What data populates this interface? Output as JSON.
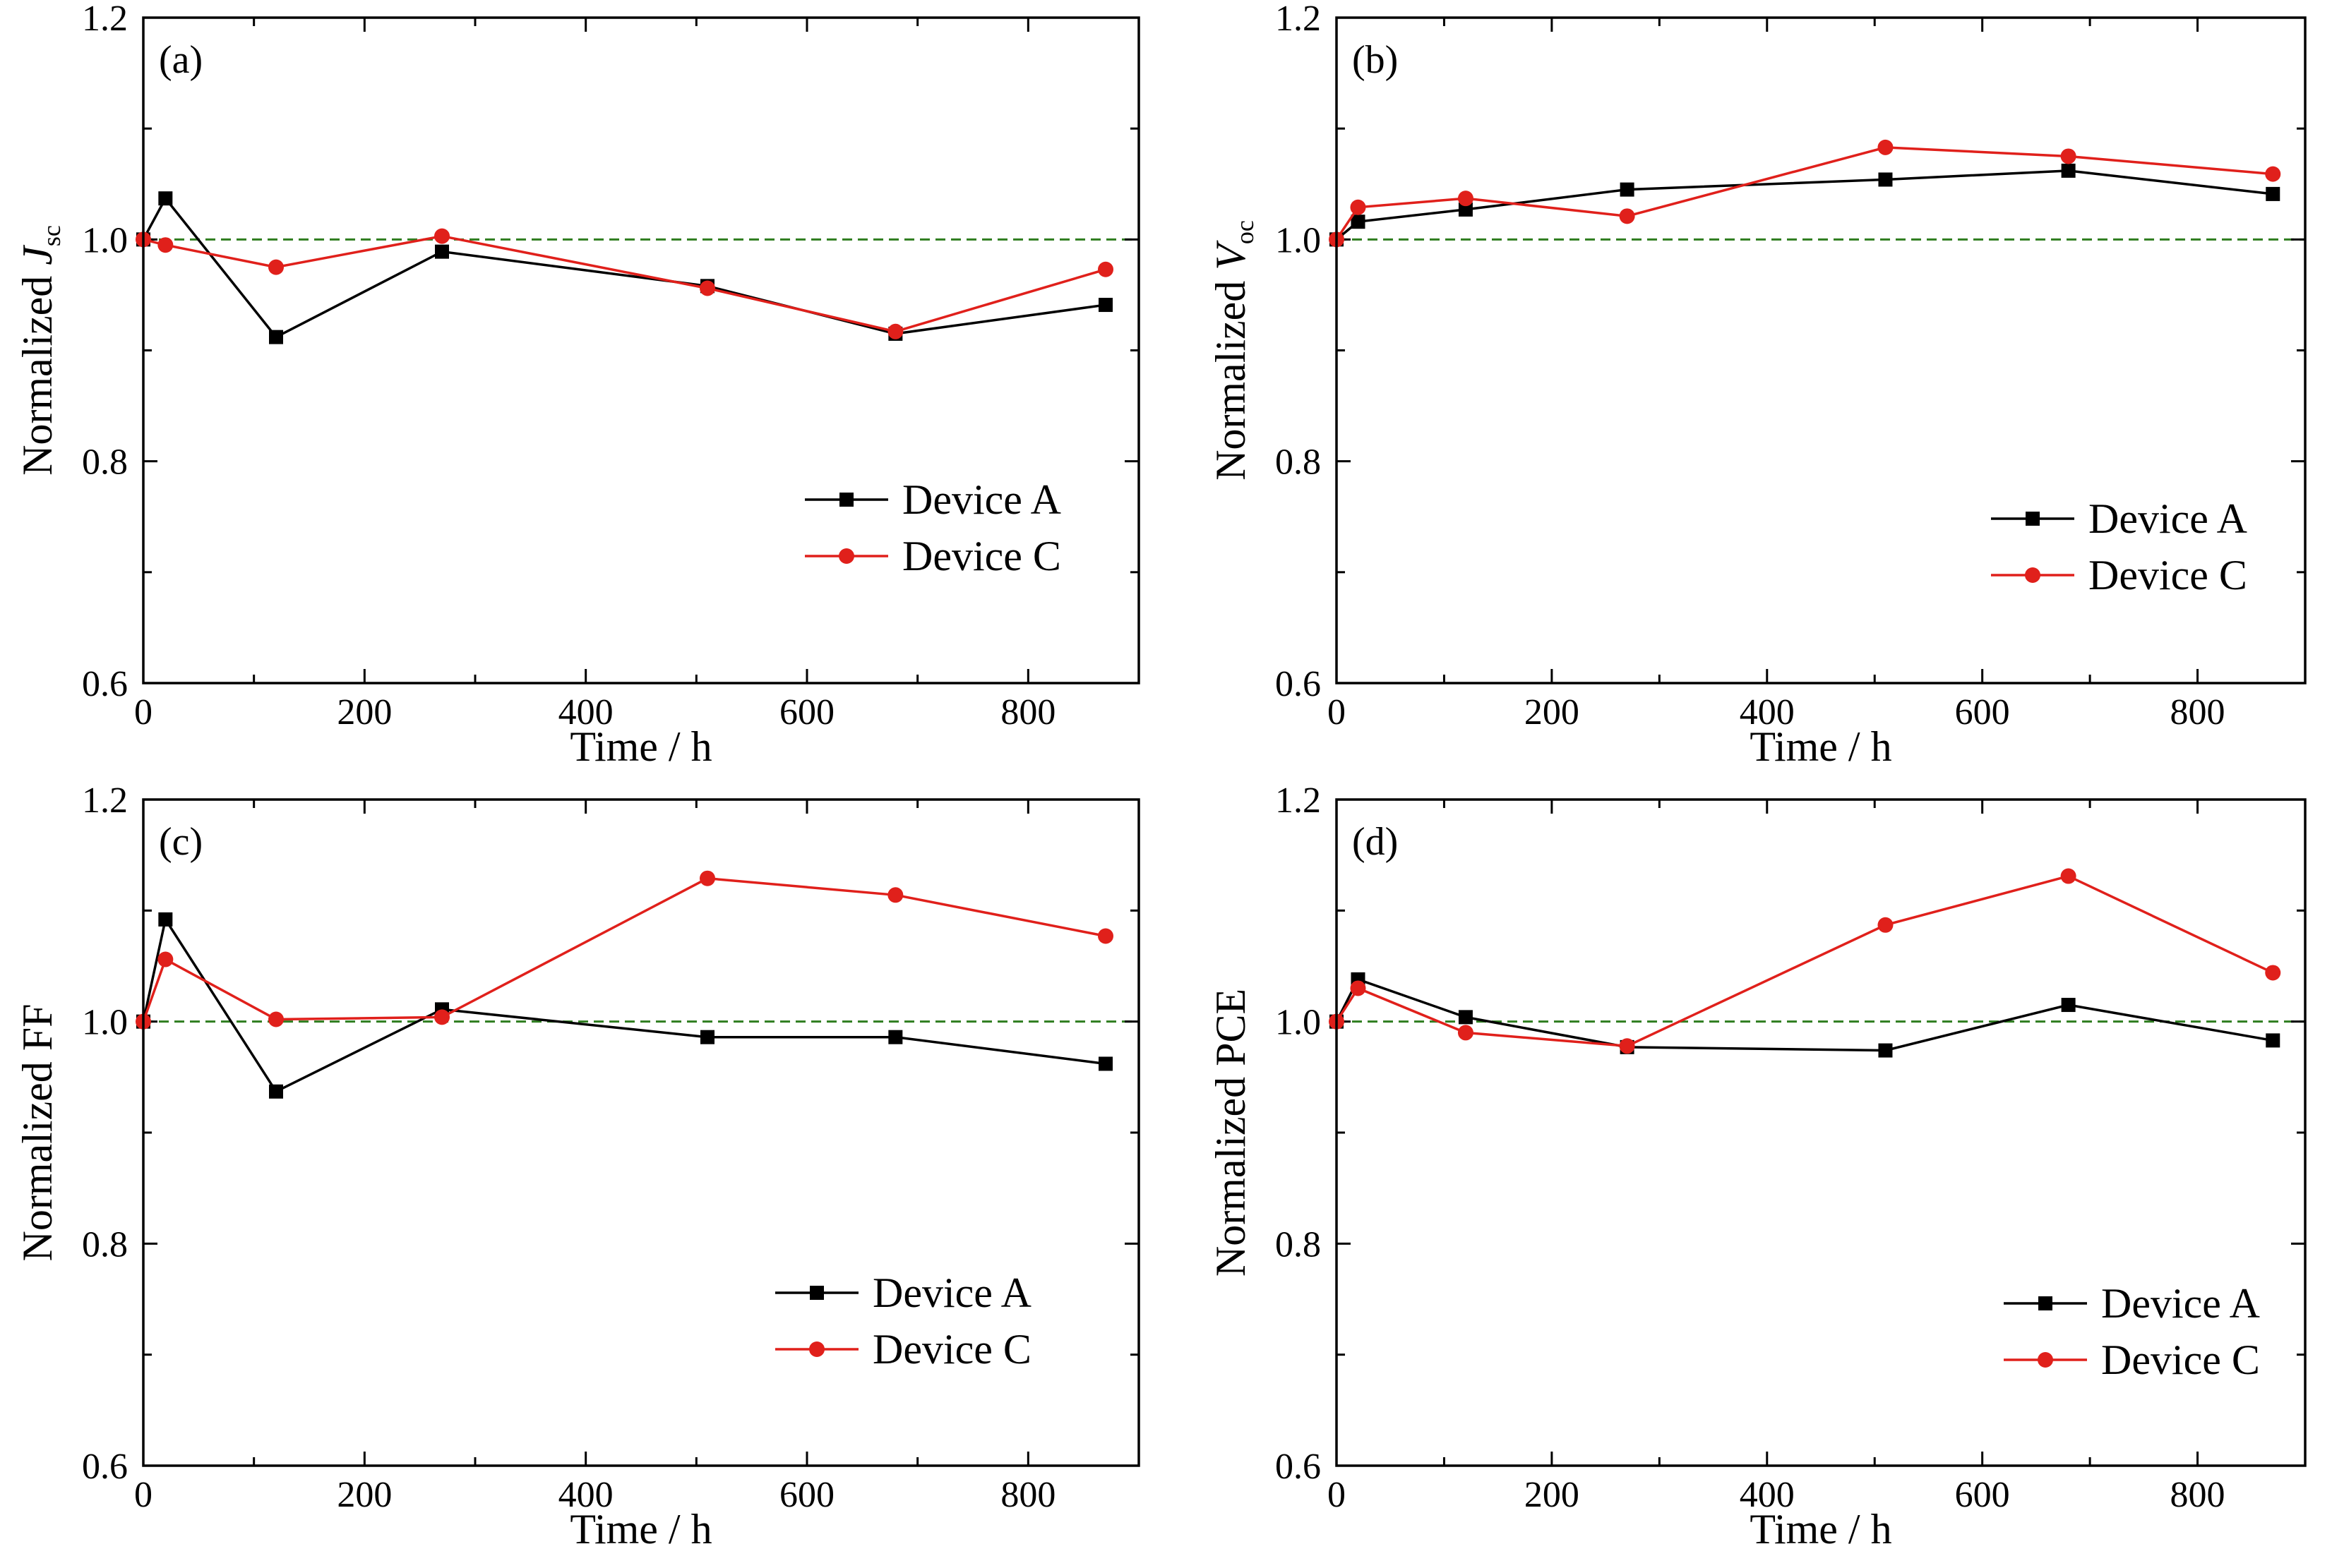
{
  "chart_data": [
    {
      "type": "line",
      "panel": "(a)",
      "ylabel": {
        "main": "Normalized ",
        "italic": "J",
        "sub": "sc"
      },
      "xlabel": "Time / h",
      "xlim": [
        0,
        900
      ],
      "ylim": [
        0.6,
        1.2
      ],
      "xticks": [
        "0",
        "200",
        "400",
        "600",
        "800"
      ],
      "yticks": [
        "0.6",
        "0.8",
        "1.0",
        "1.2"
      ],
      "reference_line": 1.0,
      "legend": "right",
      "series": [
        {
          "name": "Device A",
          "color": "#000000",
          "marker": "square",
          "x": [
            0,
            20,
            120,
            270,
            510,
            680,
            870
          ],
          "y": [
            1.0,
            1.037,
            0.912,
            0.989,
            0.958,
            0.915,
            0.941
          ]
        },
        {
          "name": "Device C",
          "color": "#e0201b",
          "marker": "circle",
          "x": [
            0,
            20,
            120,
            270,
            510,
            680,
            870
          ],
          "y": [
            1.0,
            0.995,
            0.975,
            1.003,
            0.956,
            0.917,
            0.973
          ]
        }
      ]
    },
    {
      "type": "line",
      "panel": "(b)",
      "ylabel": {
        "main": "Normalized ",
        "italic": "V",
        "sub": "oc"
      },
      "xlabel": "Time / h",
      "xlim": [
        0,
        900
      ],
      "ylim": [
        0.6,
        1.2
      ],
      "xticks": [
        "0",
        "200",
        "400",
        "600",
        "800"
      ],
      "yticks": [
        "0.6",
        "0.8",
        "1.0",
        "1.2"
      ],
      "reference_line": 1.0,
      "legend": "right",
      "series": [
        {
          "name": "Device A",
          "color": "#000000",
          "marker": "square",
          "x": [
            0,
            20,
            120,
            270,
            510,
            680,
            870
          ],
          "y": [
            1.0,
            1.016,
            1.027,
            1.045,
            1.054,
            1.062,
            1.041
          ]
        },
        {
          "name": "Device C",
          "color": "#e0201b",
          "marker": "circle",
          "x": [
            0,
            20,
            120,
            270,
            510,
            680,
            870
          ],
          "y": [
            1.0,
            1.029,
            1.037,
            1.021,
            1.083,
            1.075,
            1.059
          ]
        }
      ]
    },
    {
      "type": "line",
      "panel": "(c)",
      "ylabel": {
        "main": "Normalized FF",
        "italic": "",
        "sub": ""
      },
      "xlabel": "Time / h",
      "xlim": [
        0,
        900
      ],
      "ylim": [
        0.6,
        1.2
      ],
      "xticks": [
        "0",
        "200",
        "400",
        "600",
        "800"
      ],
      "yticks": [
        "0.6",
        "0.8",
        "1.0",
        "1.2"
      ],
      "reference_line": 1.0,
      "legend": "right",
      "series": [
        {
          "name": "Device A",
          "color": "#000000",
          "marker": "square",
          "x": [
            0,
            20,
            120,
            270,
            510,
            680,
            870
          ],
          "y": [
            1.0,
            1.092,
            0.937,
            1.011,
            0.986,
            0.986,
            0.962
          ]
        },
        {
          "name": "Device C",
          "color": "#e0201b",
          "marker": "circle",
          "x": [
            0,
            20,
            120,
            270,
            510,
            680,
            870
          ],
          "y": [
            1.0,
            1.056,
            1.002,
            1.004,
            1.129,
            1.114,
            1.077
          ]
        }
      ]
    },
    {
      "type": "line",
      "panel": "(d)",
      "ylabel": {
        "main": "Normalized PCE",
        "italic": "",
        "sub": ""
      },
      "xlabel": "Time / h",
      "xlim": [
        0,
        900
      ],
      "ylim": [
        0.6,
        1.2
      ],
      "xticks": [
        "0",
        "200",
        "400",
        "600",
        "800"
      ],
      "yticks": [
        "0.6",
        "0.8",
        "1.0",
        "1.2"
      ],
      "reference_line": 1.0,
      "legend": "right",
      "series": [
        {
          "name": "Device A",
          "color": "#000000",
          "marker": "square",
          "x": [
            0,
            20,
            120,
            270,
            510,
            680,
            870
          ],
          "y": [
            1.0,
            1.038,
            1.004,
            0.977,
            0.974,
            1.015,
            0.983
          ]
        },
        {
          "name": "Device C",
          "color": "#e0201b",
          "marker": "circle",
          "x": [
            0,
            20,
            120,
            270,
            510,
            680,
            870
          ],
          "y": [
            1.0,
            1.03,
            0.99,
            0.978,
            1.087,
            1.131,
            1.044
          ]
        }
      ]
    }
  ],
  "colors": {
    "reference_line": "#2e7d1f",
    "axis": "#000000"
  }
}
